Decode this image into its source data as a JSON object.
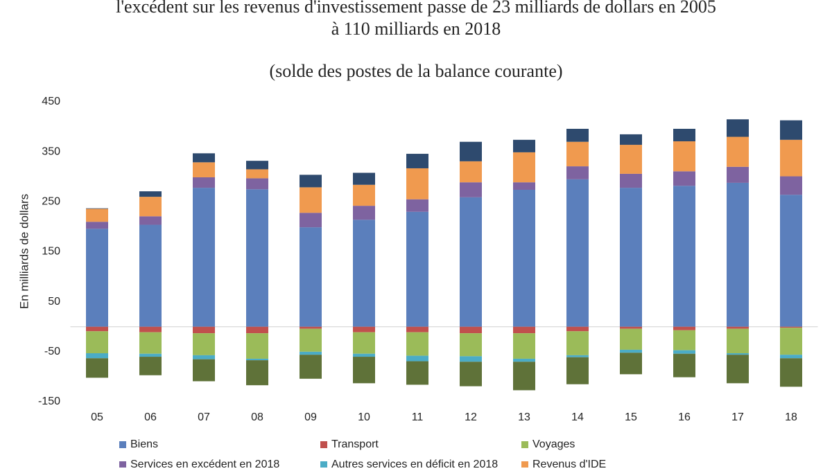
{
  "chart_data": {
    "type": "stacked_bar",
    "title_lines": [
      "l'excédent sur les revenus d'investissement passe de 23 milliards  de dollars en 2005",
      "à 110 milliards  en 2018"
    ],
    "subtitle": "(solde des postes de la balance courante)",
    "y_label": "En milliards de dollars",
    "categories": [
      "05",
      "06",
      "07",
      "08",
      "09",
      "10",
      "11",
      "12",
      "13",
      "14",
      "15",
      "16",
      "17",
      "18"
    ],
    "ylim": [
      -150,
      450
    ],
    "yticks": [
      450,
      350,
      250,
      150,
      50,
      -50,
      -150
    ],
    "grid": false,
    "series": [
      {
        "name": "Biens",
        "color": "#5b7fbc",
        "values": [
          196,
          204,
          278,
          275,
          199,
          214,
          230,
          259,
          274,
          295,
          278,
          282,
          288,
          264
        ]
      },
      {
        "name": "Transport",
        "color": "#c0504d",
        "values": [
          -9,
          -11,
          -13,
          -13,
          -4,
          -11,
          -11,
          -13,
          -13,
          -9,
          -4,
          -7,
          -4,
          -2
        ]
      },
      {
        "name": "Voyages",
        "color": "#9bbb59",
        "values": [
          -44,
          -43,
          -44,
          -51,
          -46,
          -43,
          -47,
          -46,
          -51,
          -48,
          -42,
          -40,
          -49,
          -54
        ]
      },
      {
        "name": "Services en excédent en 2018",
        "color": "#7e63a0",
        "values": [
          14,
          17,
          21,
          22,
          29,
          28,
          25,
          30,
          15,
          26,
          28,
          29,
          32,
          37
        ]
      },
      {
        "name": "Autres services en déficit en 2018",
        "color": "#4bacc6",
        "values": [
          -10,
          -6,
          -8,
          -3,
          -6,
          -6,
          -11,
          -11,
          -6,
          -4,
          -6,
          -7,
          -3,
          -7
        ]
      },
      {
        "name": "Revenus d'IDE",
        "color": "#f09a4f",
        "values": [
          26,
          39,
          30,
          18,
          51,
          42,
          62,
          42,
          60,
          49,
          58,
          60,
          60,
          73
        ]
      },
      {
        "name": null,
        "color": "#2e4a6e",
        "values": [
          1,
          11,
          18,
          17,
          25,
          24,
          29,
          39,
          25,
          26,
          21,
          25,
          35,
          39
        ]
      },
      {
        "name": null,
        "color": "#5f7239",
        "values": [
          -39,
          -37,
          -44,
          -50,
          -48,
          -53,
          -47,
          -49,
          -57,
          -54,
          -43,
          -47,
          -57,
          -57
        ]
      }
    ]
  }
}
